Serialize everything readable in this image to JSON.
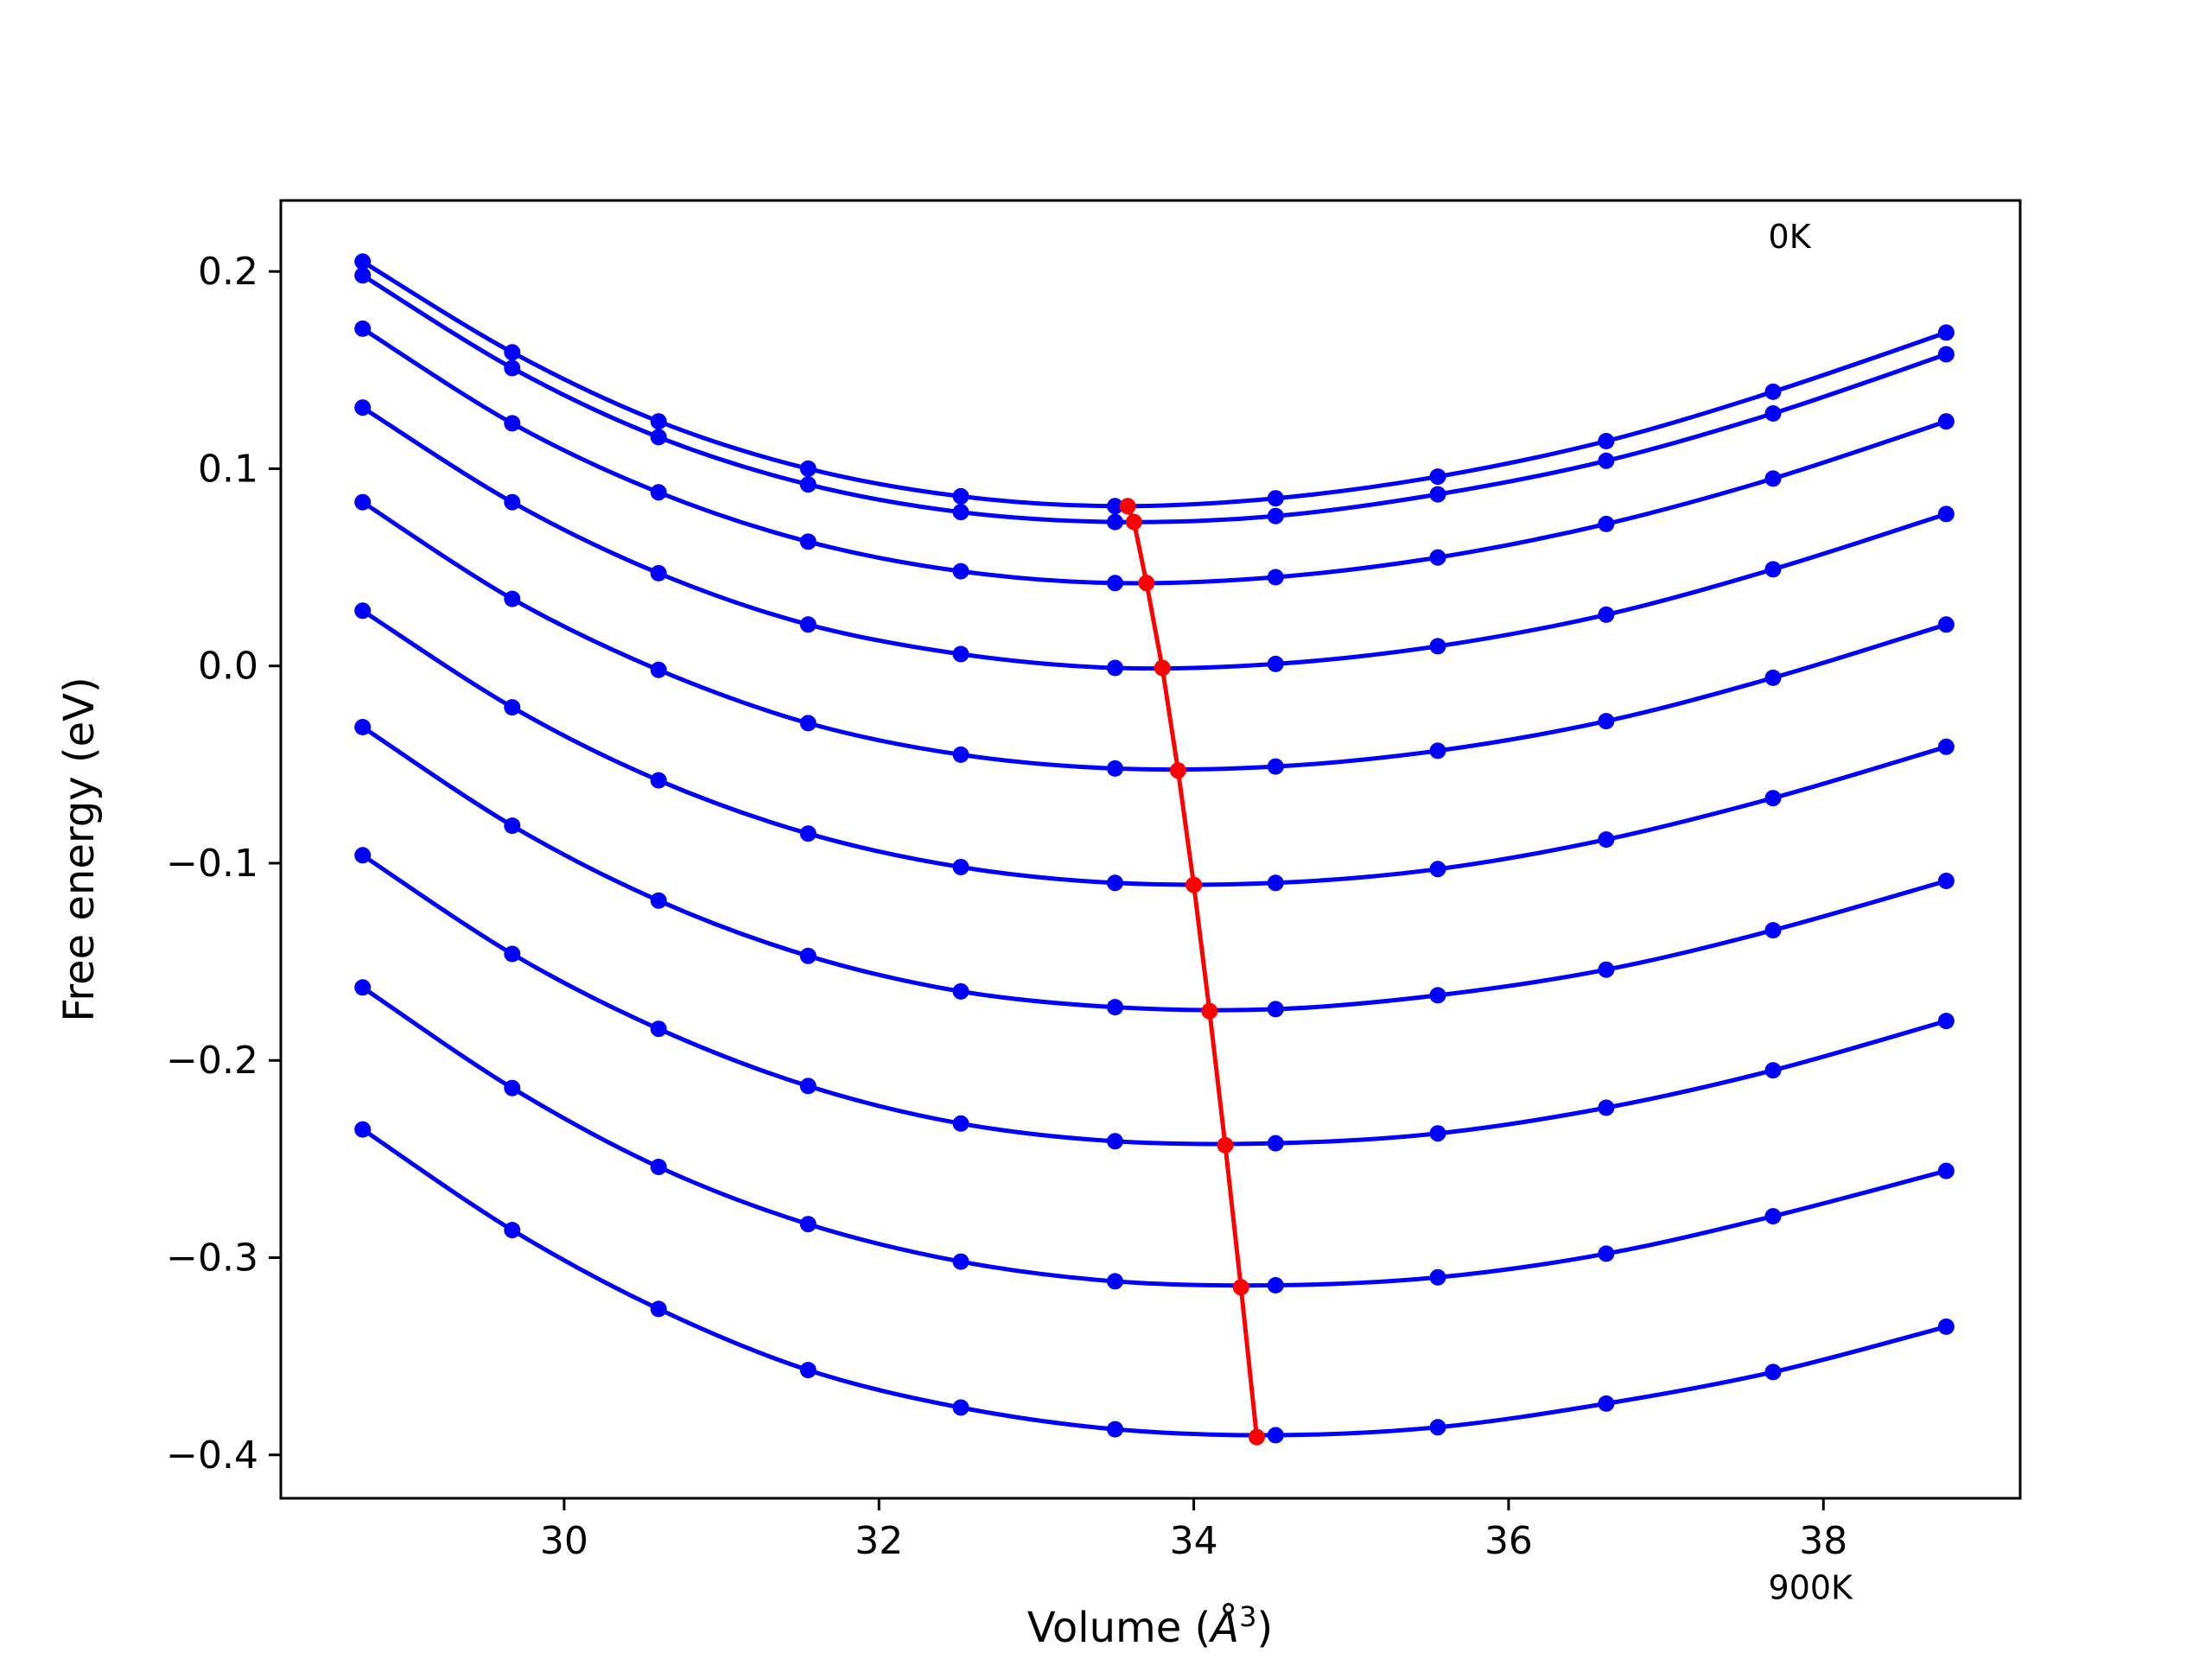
{
  "chart_data": {
    "type": "line",
    "xlabel": "Volume (",
    "xlabel_symbol": "Å",
    "xlabel_exp": "3",
    "xlabel_close": ")",
    "ylabel": "Free energy (eV)",
    "xlim": [
      28.2,
      39.25
    ],
    "ylim": [
      -0.422,
      0.236
    ],
    "xticks": [
      30,
      32,
      34,
      36,
      38
    ],
    "xtick_labels": [
      "30",
      "32",
      "34",
      "36",
      "38"
    ],
    "yticks": [
      -0.4,
      -0.3,
      -0.2,
      -0.1,
      0.0,
      0.1,
      0.2
    ],
    "ytick_labels": [
      "−0.4",
      "−0.3",
      "−0.2",
      "−0.1",
      "0.0",
      "0.1",
      "0.2"
    ],
    "annotations": [
      {
        "text": "0K",
        "x": 37.65,
        "y": 0.212
      },
      {
        "text": "900K",
        "x": 37.65,
        "y": -0.473
      }
    ],
    "grid": false,
    "curve_color": "#0000ff",
    "min_line_color": "#ff0000",
    "x": [
      28.72,
      29.67,
      30.6,
      31.55,
      32.52,
      33.5,
      34.52,
      35.55,
      36.62,
      37.68,
      38.78
    ],
    "series": [
      {
        "values": [
          0.205,
          0.159,
          0.124,
          0.1,
          0.086,
          0.081,
          0.085,
          0.096,
          0.114,
          0.139,
          0.169
        ]
      },
      {
        "values": [
          0.198,
          0.151,
          0.116,
          0.092,
          0.078,
          0.073,
          0.076,
          0.087,
          0.104,
          0.128,
          0.158
        ]
      },
      {
        "values": [
          0.171,
          0.123,
          0.088,
          0.063,
          0.048,
          0.042,
          0.045,
          0.055,
          0.072,
          0.095,
          0.124
        ]
      },
      {
        "values": [
          0.131,
          0.083,
          0.047,
          0.021,
          0.006,
          -0.001,
          0.001,
          0.01,
          0.026,
          0.049,
          0.077
        ]
      },
      {
        "values": [
          0.083,
          0.034,
          -0.002,
          -0.029,
          -0.045,
          -0.052,
          -0.051,
          -0.043,
          -0.028,
          -0.006,
          0.021
        ]
      },
      {
        "values": [
          0.028,
          -0.021,
          -0.058,
          -0.085,
          -0.102,
          -0.11,
          -0.11,
          -0.103,
          -0.088,
          -0.067,
          -0.041
        ]
      },
      {
        "values": [
          -0.031,
          -0.081,
          -0.119,
          -0.147,
          -0.165,
          -0.173,
          -0.174,
          -0.167,
          -0.154,
          -0.134,
          -0.109
        ]
      },
      {
        "values": [
          -0.096,
          -0.146,
          -0.184,
          -0.213,
          -0.232,
          -0.241,
          -0.242,
          -0.237,
          -0.224,
          -0.205,
          -0.18
        ]
      },
      {
        "values": [
          -0.163,
          -0.214,
          -0.254,
          -0.283,
          -0.302,
          -0.312,
          -0.314,
          -0.31,
          -0.298,
          -0.279,
          -0.256
        ]
      },
      {
        "values": [
          -0.235,
          -0.286,
          -0.326,
          -0.357,
          -0.376,
          -0.387,
          -0.39,
          -0.386,
          -0.374,
          -0.358,
          -0.335
        ]
      }
    ],
    "minima": {
      "x": [
        33.58,
        33.62,
        33.7,
        33.8,
        33.9,
        34.0,
        34.1,
        34.2,
        34.3,
        34.4
      ],
      "y": [
        0.081,
        0.073,
        0.042,
        -0.001,
        -0.053,
        -0.111,
        -0.175,
        -0.243,
        -0.315,
        -0.391
      ]
    }
  }
}
